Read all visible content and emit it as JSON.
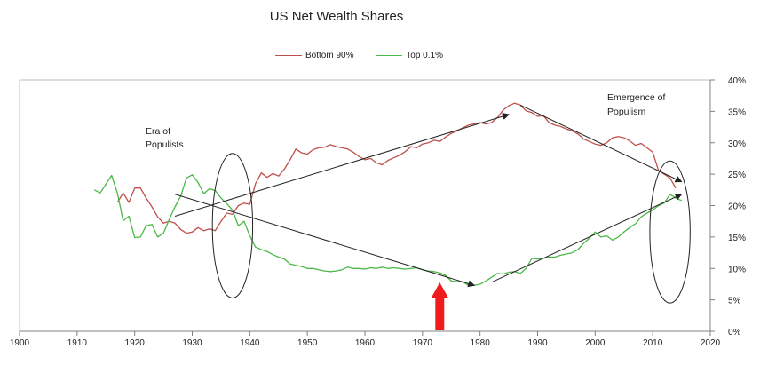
{
  "chart_data": {
    "type": "line",
    "title": "US Net Wealth Shares",
    "xlabel": "",
    "ylabel": "",
    "xlim": [
      1900,
      2020
    ],
    "ylim": [
      0,
      40
    ],
    "x_ticks": [
      "1900",
      "1910",
      "1920",
      "1930",
      "1940",
      "1950",
      "1960",
      "1970",
      "1980",
      "1990",
      "2000",
      "2010",
      "2020"
    ],
    "y_ticks": [
      "0%",
      "5%",
      "10%",
      "15%",
      "20%",
      "25%",
      "30%",
      "35%",
      "40%"
    ],
    "y_axis_side": "right",
    "grid": false,
    "legend_position": "top",
    "colors": {
      "bottom90": "#c0504d",
      "top01": "#4cb848",
      "arrow": "#222222",
      "marker": "#ee1c1c"
    },
    "series": [
      {
        "name": "Bottom 90%",
        "color": "#c0504d",
        "x": [
          1917,
          1918,
          1919,
          1920,
          1921,
          1922,
          1923,
          1924,
          1925,
          1926,
          1927,
          1928,
          1929,
          1930,
          1931,
          1932,
          1933,
          1934,
          1935,
          1936,
          1937,
          1938,
          1939,
          1940,
          1941,
          1942,
          1943,
          1944,
          1945,
          1946,
          1947,
          1948,
          1949,
          1950,
          1951,
          1952,
          1953,
          1954,
          1955,
          1956,
          1957,
          1958,
          1959,
          1960,
          1961,
          1962,
          1963,
          1964,
          1965,
          1966,
          1967,
          1968,
          1969,
          1970,
          1971,
          1972,
          1973,
          1974,
          1975,
          1976,
          1977,
          1978,
          1979,
          1980,
          1981,
          1982,
          1983,
          1984,
          1985,
          1986,
          1987,
          1988,
          1989,
          1990,
          1991,
          1992,
          1993,
          1994,
          1995,
          1996,
          1997,
          1998,
          1999,
          2000,
          2001,
          2002,
          2003,
          2004,
          2005,
          2006,
          2007,
          2008,
          2009,
          2010,
          2011,
          2012,
          2013,
          2014
        ],
        "values": [
          20.5,
          22.0,
          20.5,
          22.8,
          22.8,
          21.2,
          19.8,
          18.2,
          17.2,
          17.5,
          17.2,
          16.2,
          15.6,
          15.8,
          16.5,
          16.0,
          16.3,
          16.0,
          17.5,
          18.8,
          18.6,
          20.0,
          20.4,
          20.2,
          23.5,
          25.2,
          24.5,
          25.1,
          24.7,
          25.8,
          27.3,
          29.0,
          28.4,
          28.2,
          28.9,
          29.2,
          29.3,
          29.7,
          29.4,
          29.2,
          29.0,
          28.5,
          27.8,
          27.3,
          27.5,
          26.8,
          26.5,
          27.2,
          27.6,
          28.0,
          28.6,
          29.4,
          29.2,
          29.8,
          30.0,
          30.4,
          30.2,
          30.9,
          31.5,
          31.9,
          32.4,
          32.8,
          33.0,
          33.2,
          33.0,
          33.2,
          34.0,
          35.2,
          35.9,
          36.3,
          36.0,
          35.1,
          34.8,
          34.2,
          34.3,
          33.2,
          32.8,
          32.6,
          32.2,
          31.9,
          31.4,
          30.6,
          30.2,
          29.8,
          29.6,
          30.0,
          30.8,
          31.0,
          30.8,
          30.3,
          29.6,
          29.9,
          29.2,
          28.5,
          25.6,
          25.0,
          24.4,
          22.8
        ]
      },
      {
        "name": "Top 0.1%",
        "color": "#4cb848",
        "x": [
          1913,
          1914,
          1915,
          1916,
          1917,
          1918,
          1919,
          1920,
          1921,
          1922,
          1923,
          1924,
          1925,
          1926,
          1927,
          1928,
          1929,
          1930,
          1931,
          1932,
          1933,
          1934,
          1935,
          1936,
          1937,
          1938,
          1939,
          1940,
          1941,
          1942,
          1943,
          1944,
          1945,
          1946,
          1947,
          1948,
          1949,
          1950,
          1951,
          1952,
          1953,
          1954,
          1955,
          1956,
          1957,
          1958,
          1959,
          1960,
          1961,
          1962,
          1963,
          1964,
          1965,
          1966,
          1967,
          1968,
          1969,
          1970,
          1971,
          1972,
          1973,
          1974,
          1975,
          1976,
          1977,
          1978,
          1979,
          1980,
          1981,
          1982,
          1983,
          1984,
          1985,
          1986,
          1987,
          1988,
          1989,
          1990,
          1991,
          1992,
          1993,
          1994,
          1995,
          1996,
          1997,
          1998,
          1999,
          2000,
          2001,
          2002,
          2003,
          2004,
          2005,
          2006,
          2007,
          2008,
          2009,
          2010,
          2011,
          2012,
          2013,
          2014,
          2015
        ],
        "values": [
          22.5,
          22.0,
          23.4,
          24.8,
          22.0,
          17.6,
          18.3,
          14.9,
          15.0,
          16.8,
          17.0,
          15.0,
          15.6,
          17.8,
          19.8,
          21.5,
          24.4,
          24.9,
          23.7,
          21.9,
          22.7,
          22.4,
          21.2,
          20.3,
          19.3,
          16.8,
          17.5,
          15.2,
          13.4,
          13.0,
          12.7,
          12.2,
          11.8,
          11.5,
          10.7,
          10.5,
          10.3,
          10.0,
          10.0,
          9.8,
          9.6,
          9.5,
          9.6,
          9.8,
          10.2,
          10.0,
          10.0,
          9.9,
          10.1,
          10.0,
          10.2,
          10.0,
          10.1,
          10.0,
          9.9,
          10.0,
          10.1,
          9.8,
          9.6,
          9.5,
          9.3,
          8.9,
          8.0,
          7.9,
          7.9,
          7.3,
          7.3,
          7.5,
          8.0,
          8.6,
          9.2,
          9.1,
          9.4,
          9.5,
          9.2,
          10.0,
          11.6,
          11.5,
          11.6,
          11.8,
          11.8,
          12.1,
          12.3,
          12.5,
          13.0,
          14.0,
          14.8,
          15.8,
          15.0,
          15.2,
          14.5,
          15.0,
          15.8,
          16.5,
          17.1,
          18.2,
          18.8,
          19.3,
          20.0,
          20.4,
          21.8,
          21.2,
          20.8
        ]
      }
    ],
    "annotations": {
      "era_line1": "Era of",
      "era_line2": "Populists",
      "emergence_line1": "Emergence of",
      "emergence_line2": "Populism"
    },
    "arrows": [
      {
        "from": [
          1927,
          18.3
        ],
        "to": [
          1985,
          34.5
        ]
      },
      {
        "from": [
          1987,
          36.0
        ],
        "to": [
          2015,
          23.8
        ]
      },
      {
        "from": [
          1927,
          21.8
        ],
        "to": [
          1979,
          7.3
        ]
      },
      {
        "from": [
          1982,
          7.8
        ],
        "to": [
          2015,
          21.8
        ]
      }
    ],
    "ellipses": [
      {
        "center": [
          1937,
          16.8
        ],
        "radius_years": 3.5,
        "radius_pct": 11.5
      },
      {
        "center": [
          2013,
          15.8
        ],
        "radius_years": 3.5,
        "radius_pct": 11.3
      }
    ],
    "marker_year": 1973
  }
}
